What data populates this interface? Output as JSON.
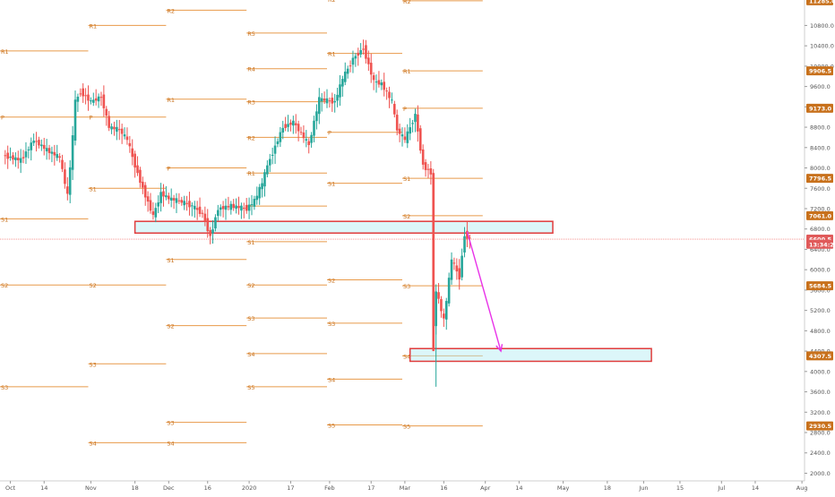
{
  "chart_data": {
    "type": "candlestick",
    "symbol_price_axis": {
      "range": [
        1850,
        11300
      ],
      "ticks": [
        2000,
        2400,
        2800,
        3200,
        3600,
        4000,
        4400,
        4800,
        5200,
        5600,
        6000,
        6400,
        6800,
        7200,
        7600,
        8000,
        8400,
        8800,
        9200,
        9600,
        10000,
        10400,
        10800
      ],
      "tick_labels": [
        "2000.0",
        "2400.0",
        "2800.0",
        "3200.0",
        "3600.0",
        "4000.0",
        "4400.0",
        "4800.0",
        "5200.0",
        "5600.0",
        "6000.0",
        "6400.0",
        "6800.0",
        "7200.0",
        "7600.0",
        "8000.0",
        "8400.0",
        "8800.0",
        "9200.0",
        "9600.0",
        "10000.0",
        "10400.0",
        "10800.0"
      ]
    },
    "price_badges": [
      {
        "label": "11285.0",
        "value": 11285.0,
        "color": "#c8711c"
      },
      {
        "label": "9906.5",
        "value": 9906.5,
        "color": "#c8711c"
      },
      {
        "label": "9173.0",
        "value": 9173.0,
        "color": "#c8711c"
      },
      {
        "label": "7796.5",
        "value": 7796.5,
        "color": "#c8711c"
      },
      {
        "label": "7061.0",
        "value": 7061.0,
        "color": "#c8711c"
      },
      {
        "label": "6600.5",
        "value": 6600.5,
        "color": "#e05a5a"
      },
      {
        "label": "13:34:20",
        "value": 6500,
        "color": "#e05a5a"
      },
      {
        "label": "5684.5",
        "value": 5684.5,
        "color": "#c8711c"
      },
      {
        "label": "4307.5",
        "value": 4307.5,
        "color": "#c8711c"
      },
      {
        "label": "2930.5",
        "value": 2930.5,
        "color": "#c8711c"
      }
    ],
    "time_axis": {
      "range": [
        "2019-09-27",
        "2020-08-02"
      ],
      "ticks": [
        {
          "label": "Oct",
          "date": "2019-10-01"
        },
        {
          "label": "14",
          "date": "2019-10-14"
        },
        {
          "label": "Nov",
          "date": "2019-11-01"
        },
        {
          "label": "18",
          "date": "2019-11-18"
        },
        {
          "label": "Dec",
          "date": "2019-12-01"
        },
        {
          "label": "16",
          "date": "2019-12-16"
        },
        {
          "label": "2020",
          "date": "2020-01-01"
        },
        {
          "label": "17",
          "date": "2020-01-17"
        },
        {
          "label": "Feb",
          "date": "2020-02-01"
        },
        {
          "label": "17",
          "date": "2020-02-17"
        },
        {
          "label": "Mar",
          "date": "2020-03-01"
        },
        {
          "label": "16",
          "date": "2020-03-16"
        },
        {
          "label": "Apr",
          "date": "2020-04-01"
        },
        {
          "label": "14",
          "date": "2020-04-14"
        },
        {
          "label": "May",
          "date": "2020-05-01"
        },
        {
          "label": "18",
          "date": "2020-05-18"
        },
        {
          "label": "Jun",
          "date": "2020-06-01"
        },
        {
          "label": "15",
          "date": "2020-06-15"
        },
        {
          "label": "Jul",
          "date": "2020-07-01"
        },
        {
          "label": "14",
          "date": "2020-07-14"
        },
        {
          "label": "Aug",
          "date": "2020-08-01"
        }
      ]
    },
    "current_price": 6600.5,
    "pivot_lines": [
      {
        "label": "R1",
        "value": 10300,
        "from": "2019-09-27",
        "to": "2019-10-31"
      },
      {
        "label": "P",
        "value": 9000,
        "from": "2019-09-27",
        "to": "2019-10-31"
      },
      {
        "label": "S1",
        "value": 7000,
        "from": "2019-09-27",
        "to": "2019-10-31"
      },
      {
        "label": "S2",
        "value": 5700,
        "from": "2019-09-27",
        "to": "2019-10-31"
      },
      {
        "label": "S3",
        "value": 3700,
        "from": "2019-09-27",
        "to": "2019-10-31"
      },
      {
        "label": "R1",
        "value": 10800,
        "from": "2019-10-31",
        "to": "2019-11-30"
      },
      {
        "label": "P",
        "value": 9000,
        "from": "2019-10-31",
        "to": "2019-11-30"
      },
      {
        "label": "S1",
        "value": 7600,
        "from": "2019-10-31",
        "to": "2019-11-30"
      },
      {
        "label": "S2",
        "value": 5700,
        "from": "2019-10-31",
        "to": "2019-11-30"
      },
      {
        "label": "S3",
        "value": 4150,
        "from": "2019-10-31",
        "to": "2019-11-30"
      },
      {
        "label": "S4",
        "value": 2600,
        "from": "2019-10-31",
        "to": "2019-11-30"
      },
      {
        "label": "R2",
        "value": 11100,
        "from": "2019-11-30",
        "to": "2019-12-31"
      },
      {
        "label": "R1",
        "value": 9350,
        "from": "2019-11-30",
        "to": "2019-12-31"
      },
      {
        "label": "P",
        "value": 8000,
        "from": "2019-11-30",
        "to": "2019-12-31"
      },
      {
        "label": "S1",
        "value": 6200,
        "from": "2019-11-30",
        "to": "2019-12-31"
      },
      {
        "label": "S2",
        "value": 4900,
        "from": "2019-11-30",
        "to": "2019-12-31"
      },
      {
        "label": "S3",
        "value": 3000,
        "from": "2019-11-30",
        "to": "2019-12-31"
      },
      {
        "label": "S4",
        "value": 2600,
        "from": "2019-11-30",
        "to": "2019-12-31"
      },
      {
        "label": "R5",
        "value": 10650,
        "from": "2019-12-31",
        "to": "2020-01-31"
      },
      {
        "label": "R4",
        "value": 9950,
        "from": "2019-12-31",
        "to": "2020-01-31"
      },
      {
        "label": "R3",
        "value": 9300,
        "from": "2019-12-31",
        "to": "2020-01-31"
      },
      {
        "label": "R2",
        "value": 8600,
        "from": "2019-12-31",
        "to": "2020-01-31"
      },
      {
        "label": "R1",
        "value": 7900,
        "from": "2019-12-31",
        "to": "2020-01-31"
      },
      {
        "label": "P",
        "value": 7250,
        "from": "2019-12-31",
        "to": "2020-01-31"
      },
      {
        "label": "S1",
        "value": 6550,
        "from": "2019-12-31",
        "to": "2020-01-31"
      },
      {
        "label": "S2",
        "value": 5700,
        "from": "2019-12-31",
        "to": "2020-01-31"
      },
      {
        "label": "S3",
        "value": 5050,
        "from": "2019-12-31",
        "to": "2020-01-31"
      },
      {
        "label": "S4",
        "value": 4350,
        "from": "2019-12-31",
        "to": "2020-01-31"
      },
      {
        "label": "S5",
        "value": 3700,
        "from": "2019-12-31",
        "to": "2020-01-31"
      },
      {
        "label": "R2",
        "value": 11320,
        "from": "2020-01-31",
        "to": "2020-02-29"
      },
      {
        "label": "R1",
        "value": 10250,
        "from": "2020-01-31",
        "to": "2020-02-29"
      },
      {
        "label": "P",
        "value": 8700,
        "from": "2020-01-31",
        "to": "2020-02-29"
      },
      {
        "label": "S1",
        "value": 7700,
        "from": "2020-01-31",
        "to": "2020-02-29"
      },
      {
        "label": "S2",
        "value": 5800,
        "from": "2020-01-31",
        "to": "2020-02-29"
      },
      {
        "label": "S3",
        "value": 4950,
        "from": "2020-01-31",
        "to": "2020-02-29"
      },
      {
        "label": "S4",
        "value": 3850,
        "from": "2020-01-31",
        "to": "2020-02-29"
      },
      {
        "label": "S5",
        "value": 2950,
        "from": "2020-01-31",
        "to": "2020-02-29"
      },
      {
        "label": "R2",
        "value": 11285,
        "from": "2020-02-29",
        "to": "2020-03-31"
      },
      {
        "label": "R1",
        "value": 9906.5,
        "from": "2020-02-29",
        "to": "2020-03-31"
      },
      {
        "label": "P",
        "value": 9173,
        "from": "2020-02-29",
        "to": "2020-03-31"
      },
      {
        "label": "S1",
        "value": 7796.5,
        "from": "2020-02-29",
        "to": "2020-03-31"
      },
      {
        "label": "S2",
        "value": 7061,
        "from": "2020-02-29",
        "to": "2020-03-31"
      },
      {
        "label": "S3",
        "value": 5684.5,
        "from": "2020-02-29",
        "to": "2020-03-31"
      },
      {
        "label": "S4",
        "value": 4307.5,
        "from": "2020-02-29",
        "to": "2020-03-31"
      },
      {
        "label": "S5",
        "value": 2930.5,
        "from": "2020-02-29",
        "to": "2020-03-31"
      }
    ],
    "zones": [
      {
        "from": "2019-11-18",
        "to": "2020-04-27",
        "low": 6720,
        "high": 6950,
        "color": "#e03c3c"
      },
      {
        "from": "2020-03-03",
        "to": "2020-06-04",
        "low": 4200,
        "high": 4450,
        "color": "#e03c3c"
      }
    ],
    "projection_arrow": {
      "from_date": "2020-03-25",
      "from_value": 6750,
      "to_date": "2020-04-07",
      "to_value": 4400,
      "color": "#e832e8"
    },
    "candles_close_path": [
      {
        "date": "2019-09-28",
        "close": 8250
      },
      {
        "date": "2019-10-05",
        "close": 8150
      },
      {
        "date": "2019-10-10",
        "close": 8550
      },
      {
        "date": "2019-10-15",
        "close": 8350
      },
      {
        "date": "2019-10-20",
        "close": 8200
      },
      {
        "date": "2019-10-23",
        "close": 7450
      },
      {
        "date": "2019-10-25",
        "close": 8600
      },
      {
        "date": "2019-10-26",
        "close": 9300
      },
      {
        "date": "2019-10-28",
        "close": 9500
      },
      {
        "date": "2019-11-01",
        "close": 9300
      },
      {
        "date": "2019-11-05",
        "close": 9400
      },
      {
        "date": "2019-11-08",
        "close": 8800
      },
      {
        "date": "2019-11-12",
        "close": 8750
      },
      {
        "date": "2019-11-15",
        "close": 8550
      },
      {
        "date": "2019-11-18",
        "close": 8050
      },
      {
        "date": "2019-11-21",
        "close": 7600
      },
      {
        "date": "2019-11-25",
        "close": 7050
      },
      {
        "date": "2019-11-28",
        "close": 7500
      },
      {
        "date": "2019-12-01",
        "close": 7400
      },
      {
        "date": "2019-12-05",
        "close": 7350
      },
      {
        "date": "2019-12-10",
        "close": 7250
      },
      {
        "date": "2019-12-14",
        "close": 7100
      },
      {
        "date": "2019-12-17",
        "close": 6650
      },
      {
        "date": "2019-12-20",
        "close": 7200
      },
      {
        "date": "2019-12-25",
        "close": 7250
      },
      {
        "date": "2019-12-31",
        "close": 7200
      },
      {
        "date": "2020-01-03",
        "close": 7350
      },
      {
        "date": "2020-01-06",
        "close": 7700
      },
      {
        "date": "2020-01-08",
        "close": 8050
      },
      {
        "date": "2020-01-14",
        "close": 8800
      },
      {
        "date": "2020-01-18",
        "close": 8900
      },
      {
        "date": "2020-01-24",
        "close": 8450
      },
      {
        "date": "2020-01-28",
        "close": 9350
      },
      {
        "date": "2020-02-03",
        "close": 9300
      },
      {
        "date": "2020-02-06",
        "close": 9750
      },
      {
        "date": "2020-02-10",
        "close": 10150
      },
      {
        "date": "2020-02-14",
        "close": 10350
      },
      {
        "date": "2020-02-18",
        "close": 9700
      },
      {
        "date": "2020-02-21",
        "close": 9650
      },
      {
        "date": "2020-02-25",
        "close": 9300
      },
      {
        "date": "2020-02-27",
        "close": 8750
      },
      {
        "date": "2020-03-01",
        "close": 8550
      },
      {
        "date": "2020-03-05",
        "close": 9050
      },
      {
        "date": "2020-03-08",
        "close": 8050
      },
      {
        "date": "2020-03-11",
        "close": 7900
      },
      {
        "date": "2020-03-12",
        "close": 4850
      },
      {
        "date": "2020-03-13",
        "close": 5600
      },
      {
        "date": "2020-03-16",
        "close": 5000
      },
      {
        "date": "2020-03-19",
        "close": 6200
      },
      {
        "date": "2020-03-22",
        "close": 5850
      },
      {
        "date": "2020-03-24",
        "close": 6700
      },
      {
        "date": "2020-03-26",
        "close": 6600.5
      }
    ]
  }
}
